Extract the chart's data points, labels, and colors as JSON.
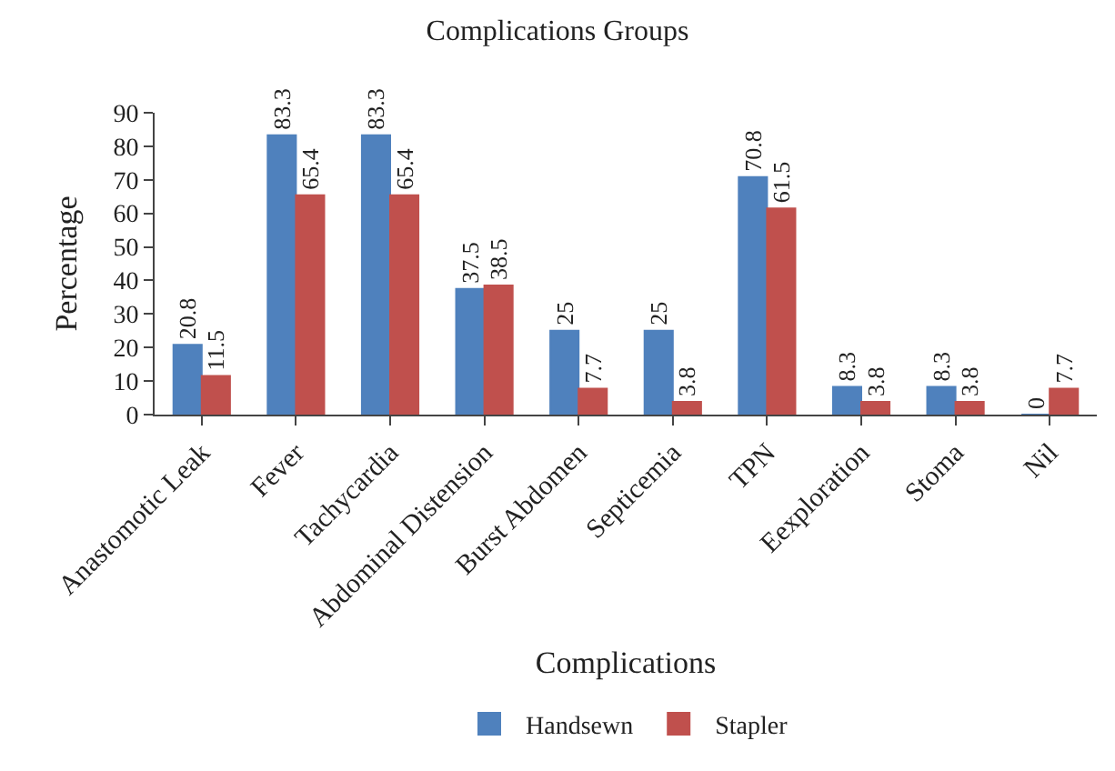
{
  "chart_data": {
    "type": "bar",
    "title": "Complications Groups",
    "xlabel": "Complications",
    "ylabel": "Percentage",
    "categories": [
      "Anastomotic Leak",
      "Fever",
      "Tachycardia",
      "Abdominal Distension",
      "Burst Abdomen",
      "Septicemia",
      "TPN",
      "Eexploration",
      "Stoma",
      "Nil"
    ],
    "series": [
      {
        "name": "Handsewn",
        "color": "#4f81bd",
        "values": [
          20.8,
          83.3,
          83.3,
          37.5,
          25,
          25,
          70.8,
          8.3,
          8.3,
          0
        ]
      },
      {
        "name": "Stapler",
        "color": "#c0504d",
        "values": [
          11.5,
          65.4,
          65.4,
          38.5,
          7.7,
          3.8,
          61.5,
          3.8,
          3.8,
          7.7
        ]
      }
    ],
    "ylim": [
      0,
      90
    ],
    "yticks": [
      0,
      10,
      20,
      30,
      40,
      50,
      60,
      70,
      80,
      90
    ],
    "legend": "bottom",
    "data_labels": true
  }
}
